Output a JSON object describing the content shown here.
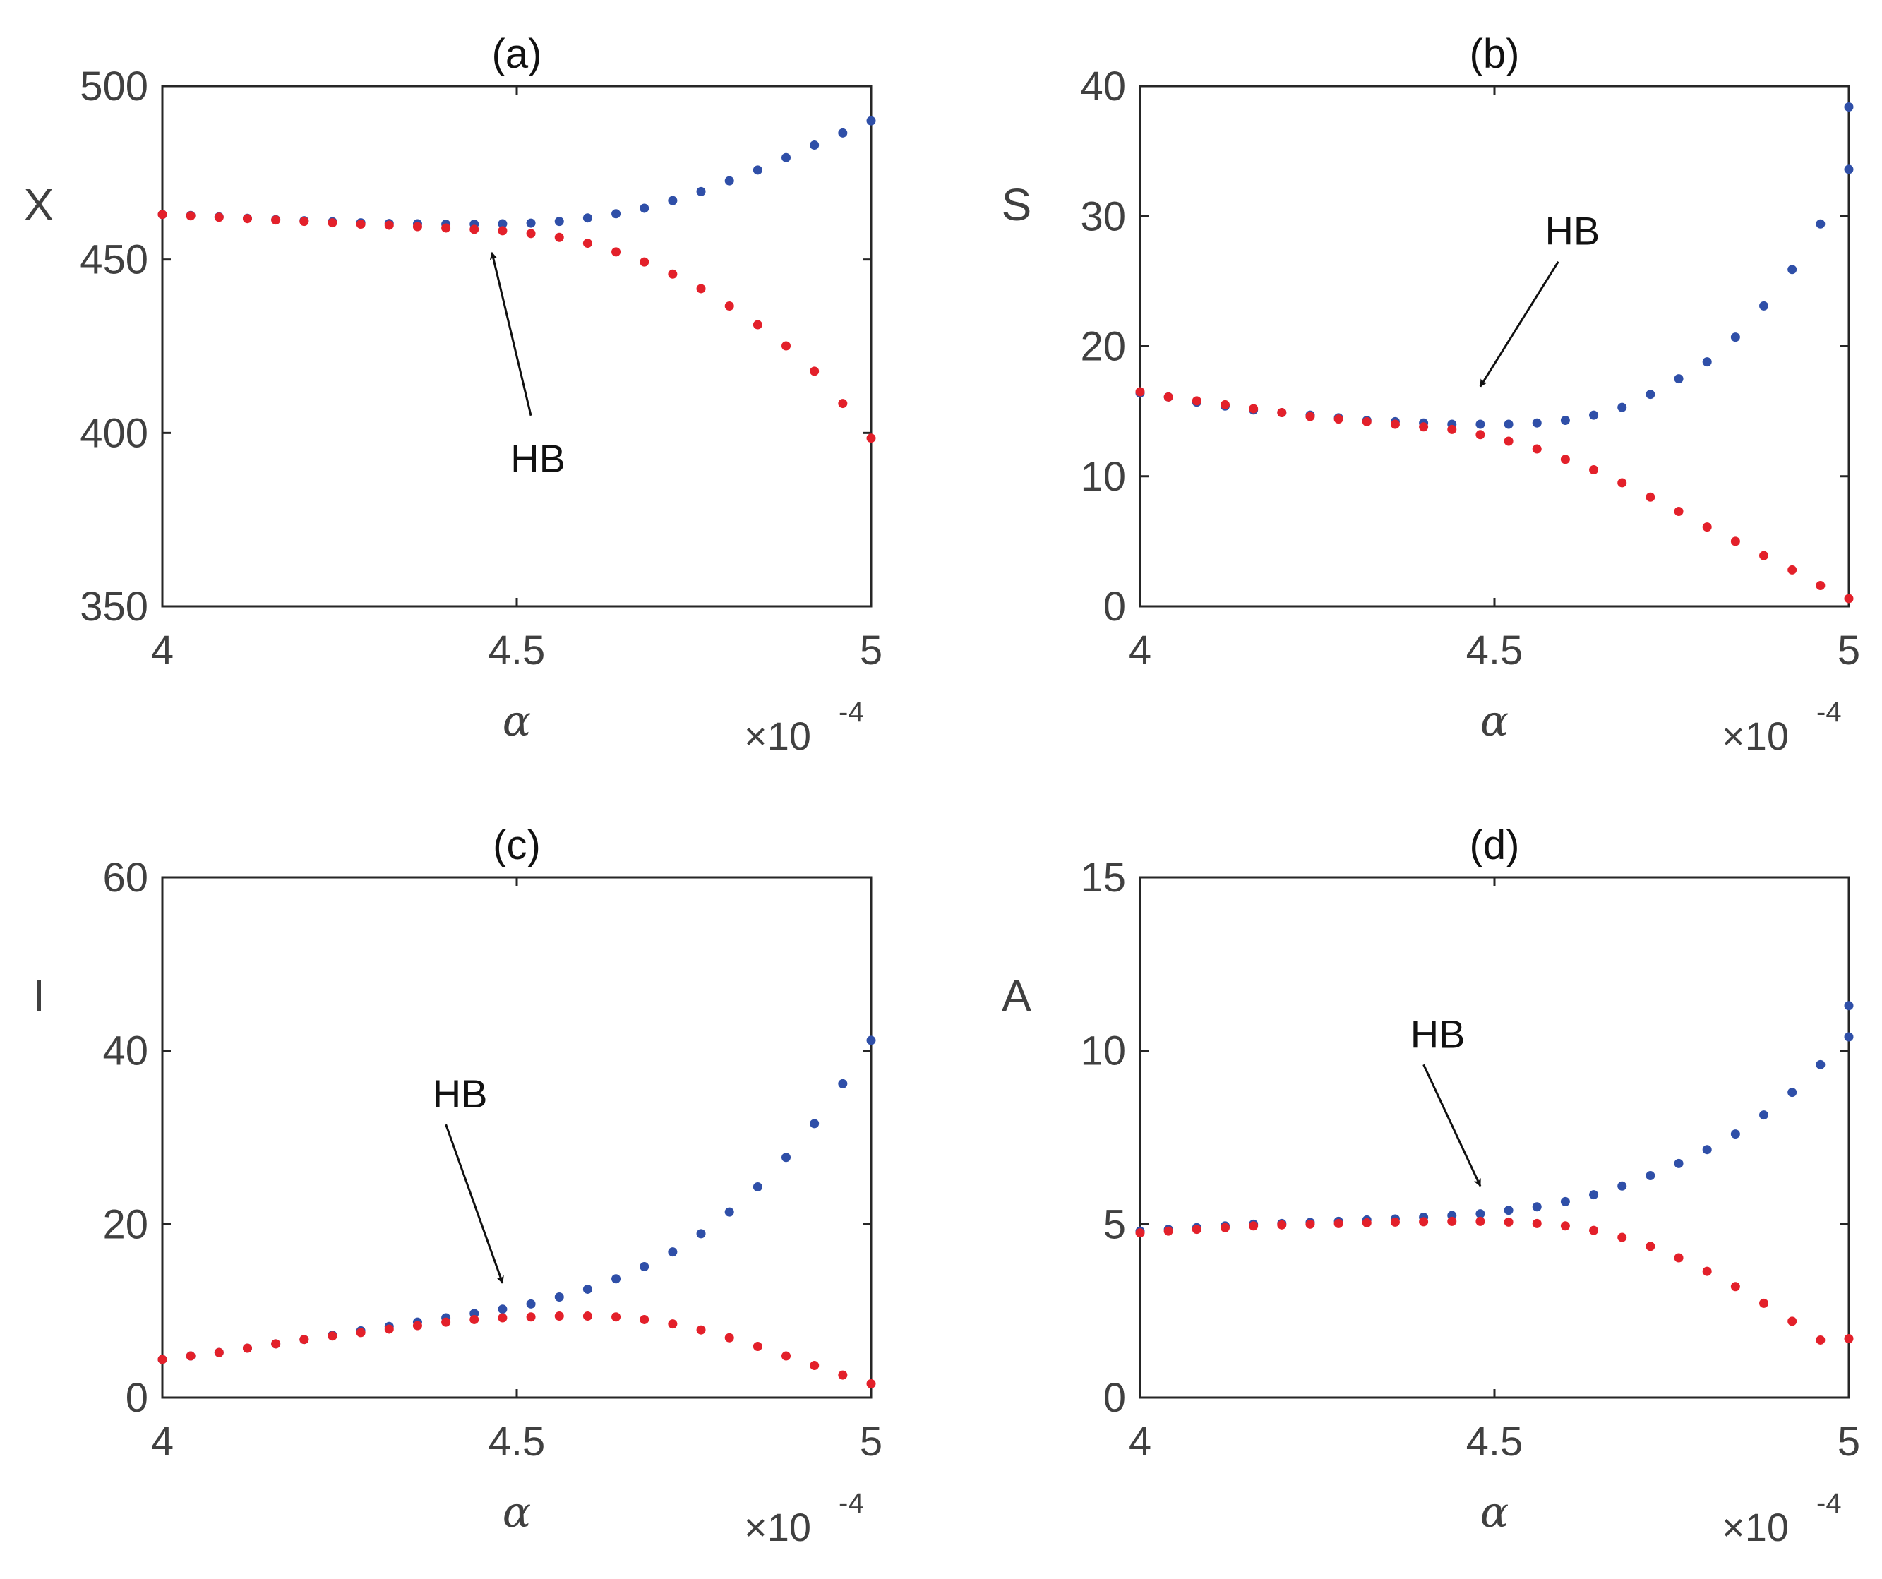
{
  "colors": {
    "blue": "#2f4fa8",
    "red": "#e3202a",
    "axis": "#262626",
    "text": "#404040"
  },
  "chart_data": [
    {
      "type": "scatter",
      "title": "(a)",
      "ylabel": "X",
      "xlabel": "α",
      "x_multiplier": "×10",
      "x_multiplier_exp": "-4",
      "xlim": [
        4,
        5
      ],
      "ylim": [
        350,
        500
      ],
      "xticks": [
        "4",
        "4.5",
        "5"
      ],
      "yticks": [
        "350",
        "400",
        "450",
        "500"
      ],
      "annotation": {
        "text": "HB",
        "from": [
          4.52,
          405
        ],
        "to": [
          4.465,
          452
        ]
      },
      "series": [
        {
          "name": "upper branch",
          "color": "#2f4fa8",
          "x": [
            4.0,
            4.04,
            4.08,
            4.12,
            4.16,
            4.2,
            4.24,
            4.28,
            4.32,
            4.36,
            4.4,
            4.44,
            4.48,
            4.52,
            4.56,
            4.6,
            4.64,
            4.68,
            4.72,
            4.76,
            4.8,
            4.84,
            4.88,
            4.92,
            4.96,
            5.0
          ],
          "y": [
            463,
            462.7,
            462.3,
            461.9,
            461.5,
            461.2,
            460.9,
            460.6,
            460.4,
            460.3,
            460.2,
            460.2,
            460.3,
            460.5,
            461,
            462,
            463.2,
            464.8,
            467,
            469.6,
            472.7,
            475.8,
            479.4,
            483,
            486.5,
            490
          ]
        },
        {
          "name": "lower branch",
          "color": "#e3202a",
          "x": [
            4.0,
            4.04,
            4.08,
            4.12,
            4.16,
            4.2,
            4.24,
            4.28,
            4.32,
            4.36,
            4.4,
            4.44,
            4.48,
            4.52,
            4.56,
            4.6,
            4.64,
            4.68,
            4.72,
            4.76,
            4.8,
            4.84,
            4.88,
            4.92,
            4.96,
            5.0
          ],
          "y": [
            463,
            462.6,
            462.2,
            461.8,
            461.4,
            461,
            460.6,
            460.2,
            459.9,
            459.5,
            459.1,
            458.7,
            458.3,
            457.5,
            456.4,
            454.7,
            452.2,
            449.3,
            445.8,
            441.6,
            436.6,
            431.2,
            425.1,
            417.8,
            408.5,
            398.5
          ]
        }
      ]
    },
    {
      "type": "scatter",
      "title": "(b)",
      "ylabel": "S",
      "xlabel": "α",
      "x_multiplier": "×10",
      "x_multiplier_exp": "-4",
      "xlim": [
        4,
        5
      ],
      "ylim": [
        0,
        40
      ],
      "xticks": [
        "4",
        "4.5",
        "5"
      ],
      "yticks": [
        "0",
        "10",
        "20",
        "30",
        "40"
      ],
      "annotation": {
        "text": "HB",
        "from": [
          4.59,
          26.5
        ],
        "to": [
          4.48,
          16.9
        ]
      },
      "series": [
        {
          "name": "upper branch",
          "color": "#2f4fa8",
          "x": [
            4.0,
            4.04,
            4.08,
            4.12,
            4.16,
            4.2,
            4.24,
            4.28,
            4.32,
            4.36,
            4.4,
            4.44,
            4.48,
            4.52,
            4.56,
            4.6,
            4.64,
            4.68,
            4.72,
            4.76,
            4.8,
            4.84,
            4.88,
            4.92,
            4.96,
            5.0
          ],
          "y": [
            16.4,
            16.1,
            15.7,
            15.4,
            15.1,
            14.9,
            14.7,
            14.5,
            14.3,
            14.2,
            14.1,
            14.0,
            14.0,
            14.0,
            14.1,
            14.3,
            14.7,
            15.3,
            16.3,
            17.5,
            18.8,
            20.7,
            23.1,
            25.9,
            29.4,
            33.6
          ]
        },
        {
          "name": "lower branch",
          "color": "#e3202a",
          "x": [
            4.0,
            4.04,
            4.08,
            4.12,
            4.16,
            4.2,
            4.24,
            4.28,
            4.32,
            4.36,
            4.4,
            4.44,
            4.48,
            4.52,
            4.56,
            4.6,
            4.64,
            4.68,
            4.72,
            4.76,
            4.8,
            4.84,
            4.88,
            4.92,
            4.96,
            5.0
          ],
          "y": [
            16.5,
            16.1,
            15.8,
            15.5,
            15.2,
            14.9,
            14.6,
            14.4,
            14.2,
            14.0,
            13.8,
            13.6,
            13.2,
            12.7,
            12.1,
            11.3,
            10.5,
            9.5,
            8.4,
            7.3,
            6.1,
            5.0,
            3.9,
            2.8,
            1.6,
            0.6
          ]
        },
        {
          "name": "upper branch endpoint",
          "color": "#2f4fa8",
          "x": [
            5.0
          ],
          "y": [
            38.4
          ]
        }
      ]
    },
    {
      "type": "scatter",
      "title": "(c)",
      "ylabel": "I",
      "xlabel": "α",
      "x_multiplier": "×10",
      "x_multiplier_exp": "-4",
      "xlim": [
        4,
        5
      ],
      "ylim": [
        0,
        60
      ],
      "xticks": [
        "4",
        "4.5",
        "5"
      ],
      "yticks": [
        "0",
        "20",
        "40",
        "60"
      ],
      "annotation": {
        "text": "HB",
        "from": [
          4.4,
          31.5
        ],
        "to": [
          4.48,
          13.2
        ]
      },
      "series": [
        {
          "name": "upper branch",
          "color": "#2f4fa8",
          "x": [
            4.0,
            4.04,
            4.08,
            4.12,
            4.16,
            4.2,
            4.24,
            4.28,
            4.32,
            4.36,
            4.4,
            4.44,
            4.48,
            4.52,
            4.56,
            4.6,
            4.64,
            4.68,
            4.72,
            4.76,
            4.8,
            4.84,
            4.88,
            4.92,
            4.96,
            5.0
          ],
          "y": [
            4.4,
            4.8,
            5.2,
            5.7,
            6.2,
            6.7,
            7.2,
            7.7,
            8.2,
            8.7,
            9.2,
            9.7,
            10.2,
            10.8,
            11.6,
            12.5,
            13.7,
            15.1,
            16.8,
            18.9,
            21.4,
            24.3,
            27.7,
            31.6,
            36.2,
            41.2
          ]
        },
        {
          "name": "lower branch",
          "color": "#e3202a",
          "x": [
            4.0,
            4.04,
            4.08,
            4.12,
            4.16,
            4.2,
            4.24,
            4.28,
            4.32,
            4.36,
            4.4,
            4.44,
            4.48,
            4.52,
            4.56,
            4.6,
            4.64,
            4.68,
            4.72,
            4.76,
            4.8,
            4.84,
            4.88,
            4.92,
            4.96,
            5.0
          ],
          "y": [
            4.4,
            4.8,
            5.2,
            5.7,
            6.2,
            6.7,
            7.1,
            7.5,
            7.9,
            8.3,
            8.7,
            9.0,
            9.2,
            9.3,
            9.4,
            9.4,
            9.3,
            9.0,
            8.5,
            7.8,
            6.9,
            5.9,
            4.8,
            3.7,
            2.6,
            1.6
          ]
        }
      ]
    },
    {
      "type": "scatter",
      "title": "(d)",
      "ylabel": "A",
      "xlabel": "α",
      "x_multiplier": "×10",
      "x_multiplier_exp": "-4",
      "xlim": [
        4,
        5
      ],
      "ylim": [
        0,
        15
      ],
      "xticks": [
        "4",
        "4.5",
        "5"
      ],
      "yticks": [
        "0",
        "5",
        "10",
        "15"
      ],
      "annotation": {
        "text": "HB",
        "from": [
          4.4,
          9.6
        ],
        "to": [
          4.48,
          6.1
        ]
      },
      "series": [
        {
          "name": "upper branch",
          "color": "#2f4fa8",
          "x": [
            4.0,
            4.04,
            4.08,
            4.12,
            4.16,
            4.2,
            4.24,
            4.28,
            4.32,
            4.36,
            4.4,
            4.44,
            4.48,
            4.52,
            4.56,
            4.6,
            4.64,
            4.68,
            4.72,
            4.76,
            4.8,
            4.84,
            4.88,
            4.92,
            4.96,
            5.0
          ],
          "y": [
            4.8,
            4.85,
            4.9,
            4.95,
            5.0,
            5.02,
            5.05,
            5.08,
            5.12,
            5.15,
            5.2,
            5.25,
            5.3,
            5.4,
            5.5,
            5.65,
            5.85,
            6.1,
            6.4,
            6.75,
            7.15,
            7.6,
            8.15,
            8.8,
            9.6,
            10.4
          ]
        },
        {
          "name": "lower branch",
          "color": "#e3202a",
          "x": [
            4.0,
            4.04,
            4.08,
            4.12,
            4.16,
            4.2,
            4.24,
            4.28,
            4.32,
            4.36,
            4.4,
            4.44,
            4.48,
            4.52,
            4.56,
            4.6,
            4.64,
            4.68,
            4.72,
            4.76,
            4.8,
            4.84,
            4.88,
            4.92,
            4.96,
            5.0
          ],
          "y": [
            4.75,
            4.8,
            4.85,
            4.9,
            4.95,
            4.98,
            5.0,
            5.02,
            5.04,
            5.06,
            5.07,
            5.08,
            5.08,
            5.06,
            5.02,
            4.95,
            4.82,
            4.62,
            4.36,
            4.03,
            3.64,
            3.2,
            2.72,
            2.2,
            1.66,
            1.7
          ]
        },
        {
          "name": "upper branch endpoint",
          "color": "#2f4fa8",
          "x": [
            5.0
          ],
          "y": [
            11.3
          ]
        }
      ]
    }
  ]
}
